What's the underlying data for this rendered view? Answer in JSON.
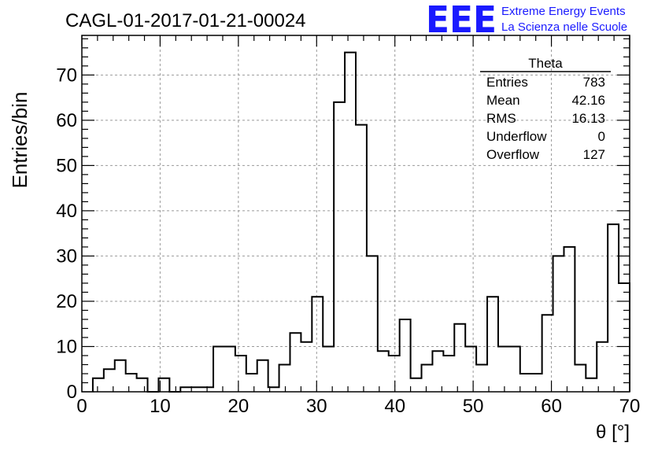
{
  "run_title": "CAGL-01-2017-01-21-00024",
  "logo": {
    "mark": "EEE",
    "line1": "Extreme Energy Events",
    "line2": "La Scienza nelle Scuole",
    "color": "#1a1aff"
  },
  "stats": {
    "title": "Theta",
    "rows": [
      {
        "label": "Entries",
        "value": "783"
      },
      {
        "label": "Mean",
        "value": "42.16"
      },
      {
        "label": "RMS",
        "value": "16.13"
      },
      {
        "label": "Underflow",
        "value": "0"
      },
      {
        "label": "Overflow",
        "value": "127"
      }
    ]
  },
  "chart_data": {
    "type": "bar",
    "title": "CAGL-01-2017-01-21-00024",
    "xlabel": "θ [°]",
    "ylabel": "Entries/bin",
    "xlim": [
      0,
      70
    ],
    "ylim": [
      0,
      78.75
    ],
    "bin_width": 1.4,
    "bin_start": 1.4,
    "x_ticks": [
      0,
      10,
      20,
      30,
      40,
      50,
      60,
      70
    ],
    "y_ticks": [
      0,
      10,
      20,
      30,
      40,
      50,
      60,
      70
    ],
    "values": [
      3,
      5,
      7,
      4,
      3,
      0,
      3,
      0,
      1,
      1,
      1,
      10,
      10,
      8,
      4,
      7,
      1,
      6,
      13,
      11,
      21,
      10,
      64,
      75,
      59,
      30,
      9,
      8,
      16,
      3,
      6,
      9,
      8,
      15,
      10,
      6,
      21,
      10,
      10,
      4,
      4,
      17,
      30,
      32,
      6,
      3,
      11,
      37,
      24
    ],
    "grid": true,
    "legend": "none",
    "line_color": "#000000"
  }
}
